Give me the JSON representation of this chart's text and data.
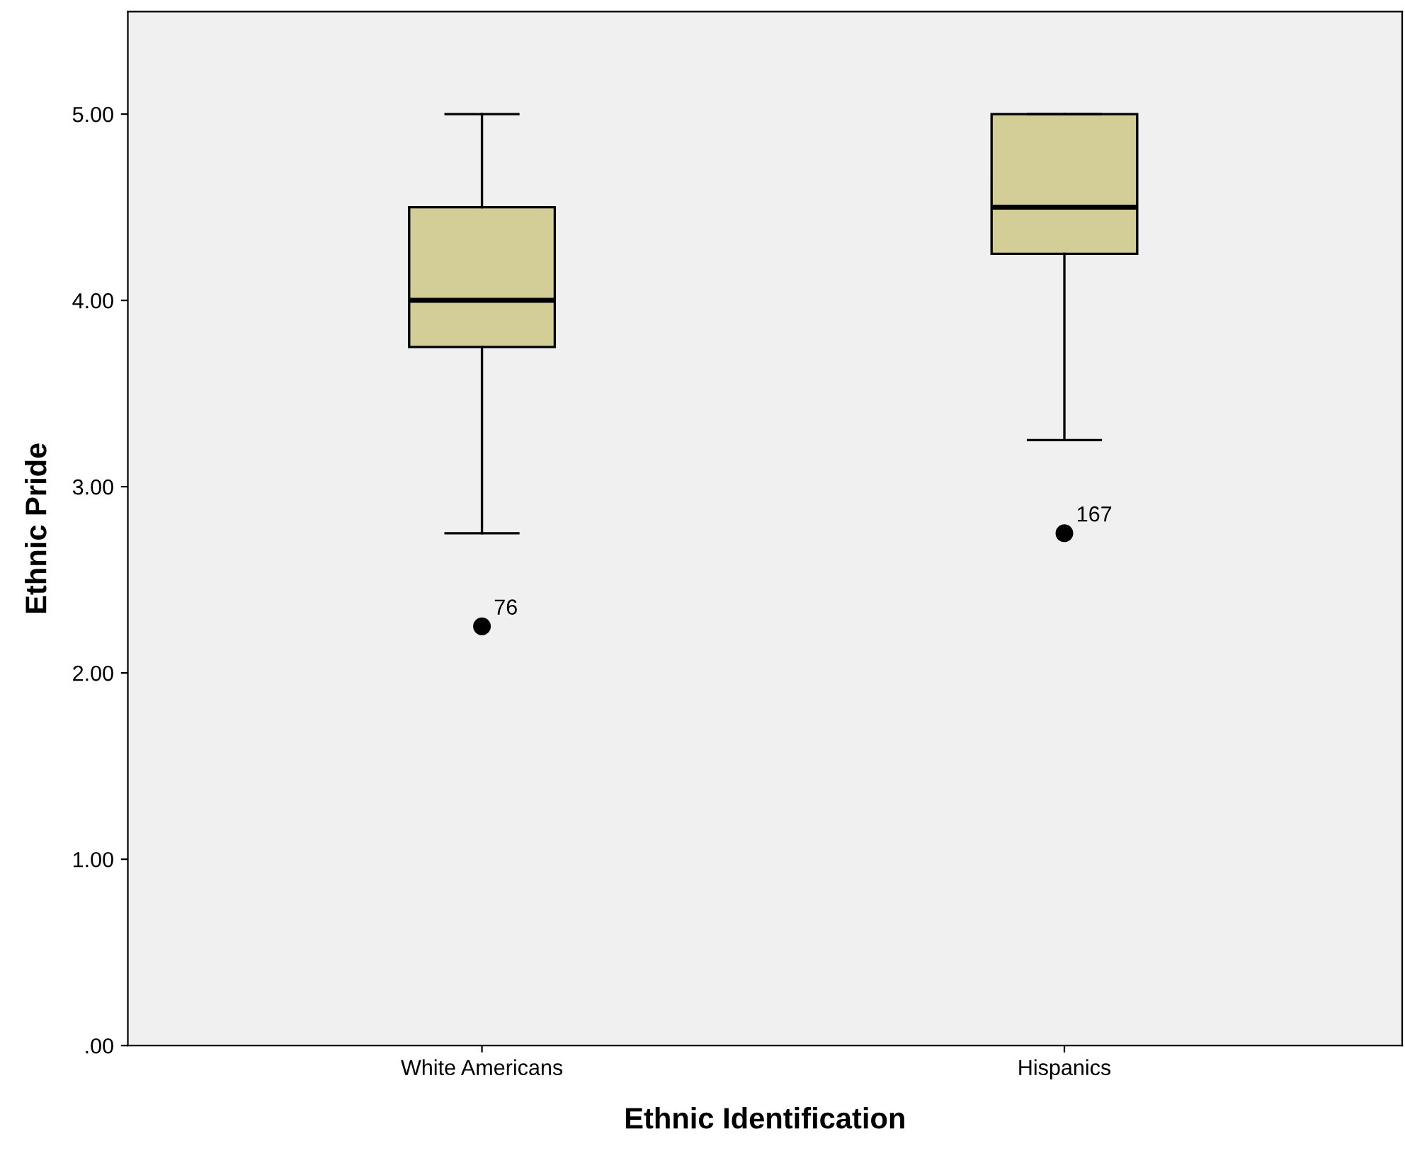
{
  "chart_data": {
    "type": "box",
    "xlabel": "Ethnic Identification",
    "ylabel": "Ethnic Pride",
    "categories": [
      "White Americans",
      "Hispanics"
    ],
    "boxes": [
      {
        "low": 2.75,
        "q1": 3.75,
        "median": 4.0,
        "q3": 4.5,
        "high": 5.0,
        "outliers": [
          2.25
        ]
      },
      {
        "low": 3.25,
        "q1": 4.25,
        "median": 4.5,
        "q3": 5.0,
        "high": 5.0,
        "outliers": [
          2.75
        ]
      }
    ],
    "color": "#d3ce97",
    "ylim": [
      0,
      5.55
    ],
    "yticks": [
      {
        "value": 0,
        "label": ".00"
      },
      {
        "value": 1,
        "label": "1.00"
      },
      {
        "value": 2,
        "label": "2.00"
      },
      {
        "value": 3,
        "label": "3.00"
      },
      {
        "value": 4,
        "label": "4.00"
      },
      {
        "value": 5,
        "label": "5.00"
      }
    ],
    "annotations": [
      "76",
      "167"
    ],
    "grid": false,
    "legend": false
  }
}
